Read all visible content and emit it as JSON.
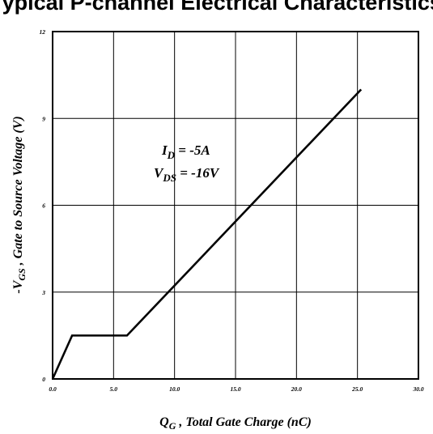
{
  "page": {
    "title": "Typical P-channel Electrical Characteristics"
  },
  "chart_data": {
    "type": "line",
    "xlabel_main": "Q",
    "xlabel_sub": "G",
    "xlabel_rest": " , Total Gate Charge (nC)",
    "ylabel_prefix": "-V",
    "ylabel_sub": "GS",
    "ylabel_rest": " , Gate to Source Voltage (V)",
    "xlim": [
      0,
      30
    ],
    "ylim": [
      0,
      12
    ],
    "x_ticks": [
      0,
      5,
      10,
      15,
      20,
      25,
      30
    ],
    "x_tick_labels": [
      "0.0",
      "5.0",
      "10.0",
      "15.0",
      "20.0",
      "25.0",
      "30.0"
    ],
    "y_ticks": [
      0,
      3,
      6,
      9,
      12
    ],
    "y_tick_labels": [
      "0",
      "3",
      "6",
      "9",
      "12"
    ],
    "grid": true,
    "annotations": {
      "id_main": "I",
      "id_sub": "D",
      "id_rest": " = -5A",
      "vds_main": "V",
      "vds_sub": "DS",
      "vds_rest": " = -16V"
    },
    "series": [
      {
        "x": [
          0,
          1.6,
          6.1,
          25.3
        ],
        "y": [
          0,
          1.5,
          1.5,
          10.0
        ]
      }
    ]
  }
}
